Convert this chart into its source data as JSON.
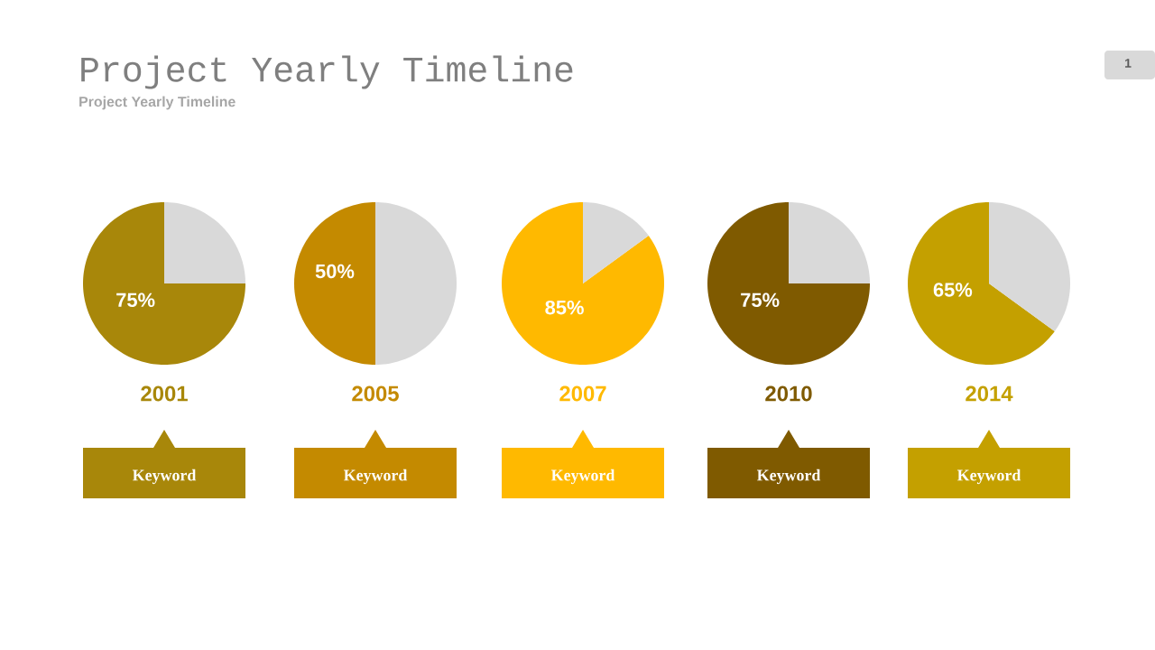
{
  "chart_data": [
    {
      "type": "pie",
      "title": "Project Yearly Timeline",
      "subtitle": "Project Yearly Timeline",
      "xlabel": "2001",
      "categories": [
        null,
        null
      ],
      "values": [
        75,
        25
      ],
      "colors": [
        "#a8870a",
        "#d9d9d9"
      ],
      "value_labels": [
        "75%",
        null
      ],
      "annotations": [
        "Keyword",
        "1"
      ]
    },
    {
      "type": "pie",
      "xlabel": "2005",
      "categories": [
        null,
        null
      ],
      "values": [
        50,
        50
      ],
      "colors": [
        "#c48a00",
        "#d9d9d9"
      ],
      "value_labels": [
        "50%",
        null
      ],
      "annotations": [
        "Keyword"
      ]
    },
    {
      "type": "pie",
      "xlabel": "2007",
      "categories": [
        null,
        null
      ],
      "values": [
        85,
        15
      ],
      "colors": [
        "#ffb900",
        "#d9d9d9"
      ],
      "value_labels": [
        "85%",
        null
      ],
      "annotations": [
        "Keyword"
      ]
    },
    {
      "type": "pie",
      "xlabel": "2010",
      "categories": [
        null,
        null
      ],
      "values": [
        75,
        25
      ],
      "colors": [
        "#7f5a00",
        "#d9d9d9"
      ],
      "value_labels": [
        "75%",
        null
      ],
      "annotations": [
        "Keyword"
      ]
    },
    {
      "type": "pie",
      "xlabel": "2014",
      "categories": [
        null,
        null
      ],
      "values": [
        65,
        35
      ],
      "colors": [
        "#c4a000",
        "#d9d9d9"
      ],
      "value_labels": [
        "65%",
        null
      ],
      "annotations": [
        "Keyword"
      ]
    }
  ]
}
